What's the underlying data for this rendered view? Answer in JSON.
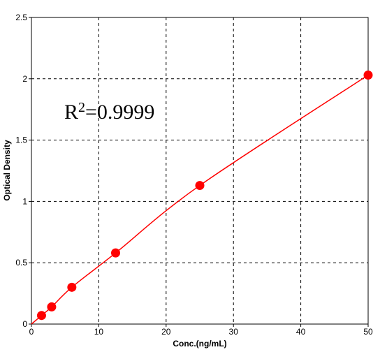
{
  "chart_data": {
    "type": "scatter",
    "xlabel": "Conc.(ng/mL)",
    "ylabel": "Optical Density",
    "xlim": [
      0,
      50
    ],
    "ylim": [
      0,
      2.5
    ],
    "x_ticks": [
      "0",
      "10",
      "20",
      "30",
      "40",
      "50"
    ],
    "y_ticks": [
      "0",
      "0.5",
      "1",
      "1.5",
      "2",
      "2.5"
    ],
    "grid": true,
    "annotation": {
      "base": "R",
      "exp": "2",
      "rest": "=0.9999"
    },
    "series": [
      {
        "x": [
          1.5,
          3,
          6,
          12.5,
          25,
          50
        ],
        "y": [
          0.07,
          0.14,
          0.3,
          0.58,
          1.13,
          2.03
        ],
        "color": "#ff0000",
        "marker": "circle",
        "fit_line": true
      }
    ]
  }
}
